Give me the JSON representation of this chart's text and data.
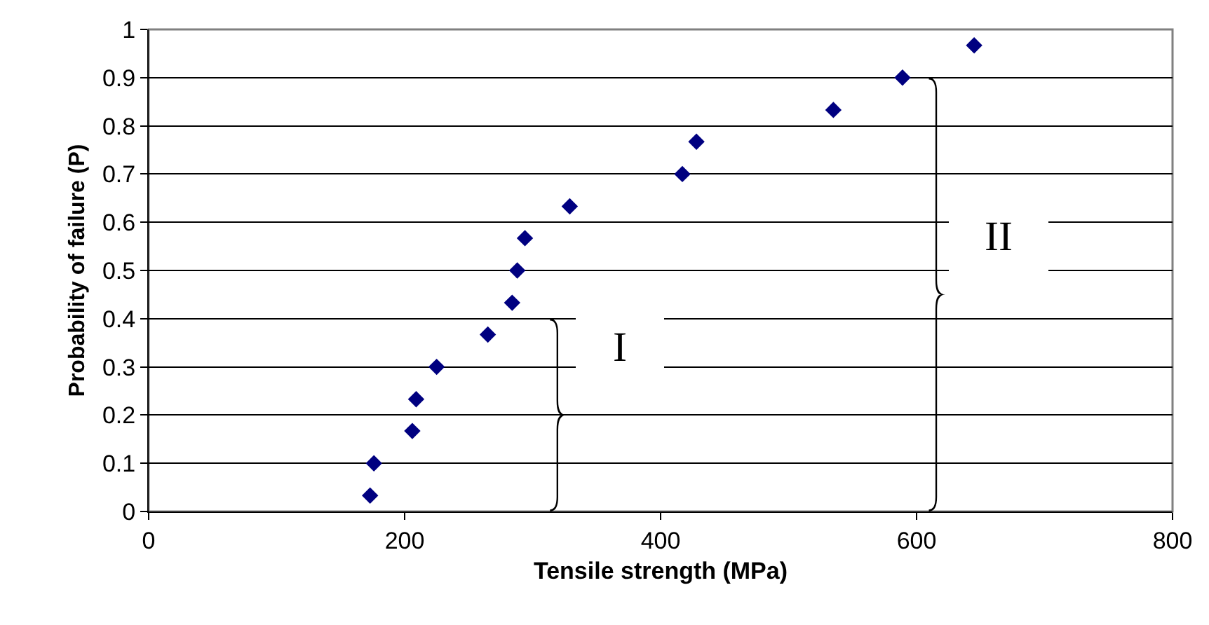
{
  "chart_data": {
    "type": "scatter",
    "xlabel": "Tensile strength (MPa)",
    "ylabel": "Probability of failure (P)",
    "x": [
      173,
      176,
      206,
      209,
      225,
      265,
      284,
      288,
      294,
      329,
      417,
      428,
      535,
      589,
      645
    ],
    "series": [
      {
        "color": "#000080",
        "values": [
          0.033,
          0.1,
          0.167,
          0.233,
          0.3,
          0.367,
          0.433,
          0.5,
          0.567,
          0.633,
          0.7,
          0.767,
          0.833,
          0.9,
          0.967
        ]
      }
    ],
    "marker": "diamond",
    "xlim": [
      0,
      800
    ],
    "xticks": [
      0,
      200,
      400,
      600,
      800
    ],
    "ylim": [
      0,
      1
    ],
    "yticks": [
      0,
      0.1,
      0.2,
      0.3,
      0.4,
      0.5,
      0.6,
      0.7,
      0.8,
      0.9,
      1
    ],
    "grid": "y",
    "annotations": [
      "I",
      "II"
    ]
  }
}
